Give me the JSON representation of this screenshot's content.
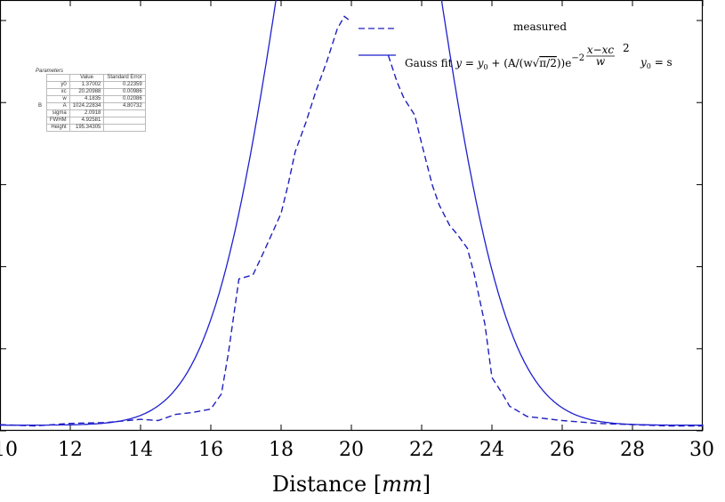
{
  "chart_data": {
    "type": "line",
    "xlabel_text": "Distance ",
    "xlabel_unit": "mm",
    "xlim": [
      10,
      30
    ],
    "ylim": [
      0,
      105
    ],
    "x_ticks": [
      "10",
      "12",
      "14",
      "16",
      "18",
      "20",
      "22",
      "24",
      "26",
      "28",
      "30"
    ],
    "grid": false,
    "legend_position": "top-right",
    "series": [
      {
        "name": "measured",
        "style": "dashed",
        "color": "#1f1fbf",
        "segments": [
          [
            [
              10.0,
              1.5
            ],
            [
              11.0,
              1.2
            ],
            [
              12.0,
              1.8
            ],
            [
              13.0,
              2.0
            ],
            [
              14.0,
              2.8
            ],
            [
              14.5,
              2.5
            ],
            [
              15.0,
              4.0
            ],
            [
              15.5,
              4.5
            ],
            [
              16.0,
              5.3
            ],
            [
              16.3,
              9.0
            ],
            [
              16.5,
              19.0
            ],
            [
              16.8,
              37.0
            ],
            [
              17.2,
              38.0
            ],
            [
              17.5,
              43.5
            ],
            [
              18.0,
              53.0
            ],
            [
              18.2,
              60.0
            ],
            [
              18.4,
              68.0
            ],
            [
              18.7,
              75.0
            ],
            [
              19.0,
              83.0
            ],
            [
              19.3,
              90.0
            ],
            [
              19.6,
              98.0
            ],
            [
              19.8,
              101.0
            ],
            [
              19.95,
              100.0
            ]
          ],
          [
            [
              21.05,
              91.5
            ],
            [
              21.3,
              85.0
            ],
            [
              21.5,
              81.0
            ],
            [
              21.8,
              77.0
            ],
            [
              22.0,
              70.0
            ],
            [
              22.3,
              60.0
            ],
            [
              22.5,
              55.0
            ],
            [
              22.8,
              50.0
            ],
            [
              23.0,
              48.0
            ],
            [
              23.3,
              44.5
            ],
            [
              23.5,
              38.0
            ],
            [
              23.8,
              26.0
            ],
            [
              24.0,
              13.0
            ],
            [
              24.3,
              9.0
            ],
            [
              24.5,
              6.0
            ],
            [
              25.0,
              3.5
            ],
            [
              26.0,
              2.5
            ],
            [
              27.0,
              1.8
            ],
            [
              28.0,
              1.5
            ],
            [
              29.0,
              1.2
            ],
            [
              30.0,
              1.2
            ]
          ]
        ]
      },
      {
        "name": "Gauss fit",
        "style": "solid",
        "color": "#1f1fcf",
        "y0": 1.37002,
        "xc": 20.20988,
        "w": 4.1835,
        "A": 1024.22834,
        "domains": [
          [
            10,
            19.9
          ],
          [
            21.1,
            30
          ]
        ]
      }
    ],
    "legend_formula": {
      "fit_lead": "Gauss fit",
      "y": "y",
      "eq": " = ",
      "y0_main": "y",
      "y0_sub": "0",
      "plus_open": " + (A/(w",
      "sqrt": "√",
      "pi_term": "π/2",
      "close": "))e",
      "exp_minus": "−2",
      "frac_num": "x−xc",
      "frac_den": "w",
      "exp_pow": "2",
      "tail_y": "y",
      "tail_sub": "0",
      "tail_eq": " = s"
    }
  },
  "parameters_table": {
    "caption": "Parameters",
    "headers": [
      "",
      "Value",
      "Standard Error"
    ],
    "group_label": "B",
    "rows": [
      {
        "name": "y0",
        "value": "1.37002",
        "error": "0.22359"
      },
      {
        "name": "xc",
        "value": "20.20988",
        "error": "0.00986"
      },
      {
        "name": "w",
        "value": "4.1835",
        "error": "0.02086"
      },
      {
        "name": "A",
        "value": "1024.22834",
        "error": "4.80732"
      },
      {
        "name": "sigma",
        "value": "2.0918",
        "error": ""
      },
      {
        "name": "FWHM",
        "value": "4.92581",
        "error": ""
      },
      {
        "name": "Height",
        "value": "195.34305",
        "error": ""
      }
    ]
  }
}
